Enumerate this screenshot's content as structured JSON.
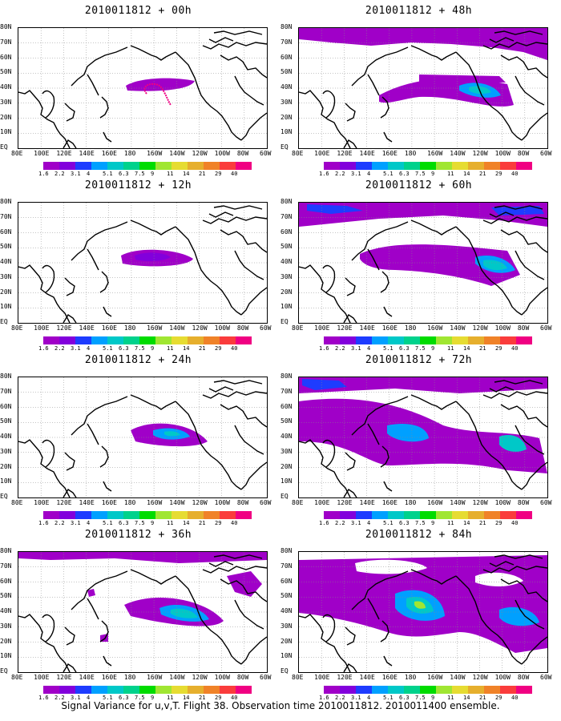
{
  "panels": [
    {
      "title": "2010011812 + 00h",
      "field": [],
      "track": true
    },
    {
      "title": "2010011812 + 48h",
      "field": [
        "pac-stream-48",
        "hot-48"
      ],
      "track": false
    },
    {
      "title": "2010011812 + 12h",
      "field": [
        "blob-12"
      ],
      "track": false
    },
    {
      "title": "2010011812 + 60h",
      "field": [
        "pac-stream-60",
        "hot-60",
        "arctic-60"
      ],
      "track": false
    },
    {
      "title": "2010011812 + 24h",
      "field": [
        "blob-24"
      ],
      "track": false
    },
    {
      "title": "2010011812 + 72h",
      "field": [
        "pac-stream-72",
        "hot-72",
        "arctic-72"
      ],
      "track": false
    },
    {
      "title": "2010011812 + 36h",
      "field": [
        "blob-36",
        "arctic-36"
      ],
      "track": false
    },
    {
      "title": "2010011812 + 84h",
      "field": [
        "pac-stream-84",
        "hot-84",
        "arctic-84"
      ],
      "track": false
    }
  ],
  "lat_labels": [
    "80N",
    "70N",
    "60N",
    "50N",
    "40N",
    "30N",
    "20N",
    "10N",
    "EQ"
  ],
  "lon_labels": [
    "80E",
    "100E",
    "120E",
    "140E",
    "160E",
    "180",
    "160W",
    "140W",
    "120W",
    "100W",
    "80W",
    "60W"
  ],
  "colorbar": {
    "ticks": [
      "1.6",
      "2.2",
      "3.1",
      "4",
      "5.1",
      "6.3",
      "7.5",
      "9",
      "11",
      "14",
      "21",
      "29",
      "40"
    ],
    "colors": [
      "#a000c8",
      "#8200dc",
      "#1e3cff",
      "#00a0ff",
      "#00c8c8",
      "#00d28c",
      "#00dc00",
      "#a0e632",
      "#e6dc32",
      "#e6af2d",
      "#f08228",
      "#fa3c3c",
      "#f00082"
    ]
  },
  "caption": "Signal Variance for u,v,T. Flight 38. Observation time 2010011812. 2010011400 ensemble."
}
